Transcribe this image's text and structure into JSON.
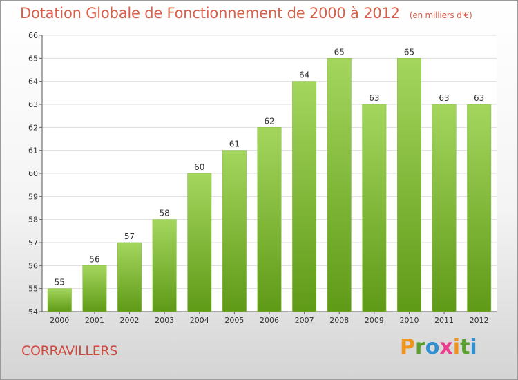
{
  "header": {
    "title": "Dotation Globale de Fonctionnement de 2000 à 2012",
    "subtitle": "(en milliers d'€)"
  },
  "footer": {
    "commune": "CORRAVILLERS",
    "logo_text": "Proxiti"
  },
  "colors": {
    "bar_top": "#a4d65e",
    "bar_bottom": "#5f9a17",
    "title": "#d95f4a",
    "grid": "#dddddd",
    "logo_letters": [
      "#f0941d",
      "#5aa02c",
      "#2f8fd0",
      "#e83e8c",
      "#f0941d",
      "#5aa02c",
      "#2f8fd0"
    ]
  },
  "chart_data": {
    "type": "bar",
    "title": "Dotation Globale de Fonctionnement de 2000 à 2012",
    "subtitle": "(en milliers d'€)",
    "xlabel": "",
    "ylabel": "",
    "categories": [
      "2000",
      "2001",
      "2002",
      "2003",
      "2004",
      "2005",
      "2006",
      "2007",
      "2008",
      "2009",
      "2010",
      "2011",
      "2012"
    ],
    "values": [
      55,
      56,
      57,
      58,
      60,
      61,
      62,
      64,
      65,
      63,
      65,
      63,
      63
    ],
    "value_labels": [
      "55",
      "56",
      "57",
      "58",
      "60",
      "61",
      "62",
      "64",
      "65",
      "63",
      "65",
      "63",
      "63"
    ],
    "ylim": [
      54,
      66
    ],
    "yticks": [
      "54",
      "55",
      "56",
      "57",
      "58",
      "59",
      "60",
      "61",
      "62",
      "63",
      "64",
      "65",
      "66"
    ],
    "grid": true,
    "legend": "none"
  }
}
